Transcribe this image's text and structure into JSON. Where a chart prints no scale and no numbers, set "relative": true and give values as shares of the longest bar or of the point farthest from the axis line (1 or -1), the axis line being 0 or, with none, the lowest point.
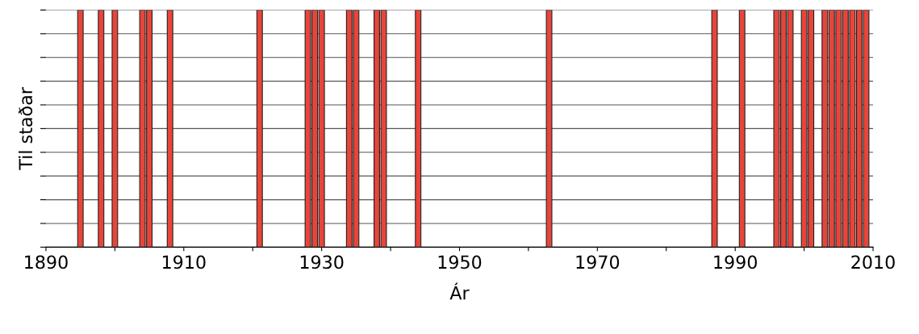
{
  "chart_data": {
    "type": "bar",
    "relative": true,
    "xlabel": "Ár",
    "ylabel": "Til staðar",
    "x": [
      1895,
      1898,
      1900,
      1904,
      1905,
      1908,
      1921,
      1928,
      1929,
      1930,
      1934,
      1935,
      1938,
      1939,
      1944,
      1963,
      1987,
      1991,
      1996,
      1997,
      1998,
      2000,
      2001,
      2003,
      2004,
      2005,
      2006,
      2007,
      2008,
      2009
    ],
    "series": [
      {
        "color": "#e8453a",
        "values": [
          1,
          1,
          1,
          1,
          1,
          1,
          1,
          1,
          1,
          1,
          1,
          1,
          1,
          1,
          1,
          1,
          1,
          1,
          1,
          1,
          1,
          1,
          1,
          1,
          1,
          1,
          1,
          1,
          1,
          1
        ]
      }
    ],
    "xlim": [
      1890,
      2010
    ],
    "xticks": [
      1890,
      {
        "value": 1900,
        "label": null
      },
      1910,
      {
        "value": 1920,
        "label": null
      },
      1930,
      {
        "value": 1940,
        "label": null
      },
      1950,
      {
        "value": 1960,
        "label": null
      },
      1970,
      {
        "value": 1980,
        "label": null
      },
      1990,
      {
        "value": 2000,
        "label": null
      },
      2010
    ],
    "grid": "y",
    "tick_labels": "x"
  }
}
